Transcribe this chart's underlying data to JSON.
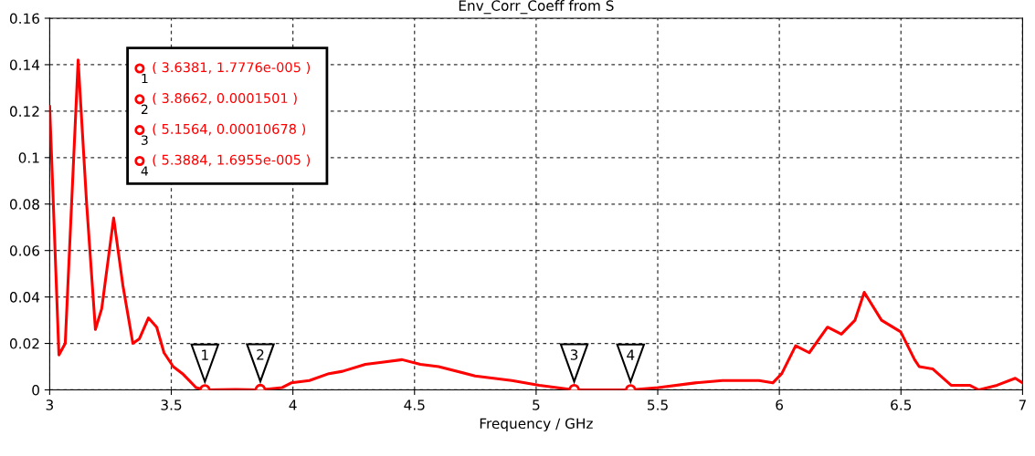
{
  "chart_data": {
    "type": "line",
    "title": "Env_Corr_Coeff from S",
    "xlabel": "Frequency / GHz",
    "x": [
      3.0,
      3.008,
      3.038,
      3.064,
      3.117,
      3.152,
      3.188,
      3.214,
      3.263,
      3.301,
      3.342,
      3.369,
      3.406,
      3.44,
      3.47,
      3.508,
      3.546,
      3.602,
      3.638,
      3.771,
      3.866,
      3.956,
      3.993,
      4.068,
      4.148,
      4.204,
      4.298,
      4.373,
      4.449,
      4.524,
      4.599,
      4.749,
      4.9,
      5.013,
      5.156,
      5.388,
      5.502,
      5.653,
      5.766,
      5.841,
      5.916,
      5.973,
      6.01,
      6.067,
      6.123,
      6.198,
      6.255,
      6.311,
      6.349,
      6.42,
      6.499,
      6.556,
      6.575,
      6.631,
      6.706,
      6.782,
      6.82,
      6.895,
      6.97,
      7.0
    ],
    "series": [
      {
        "color": "#ff0000",
        "values": [
          0.122,
          0.1,
          0.015,
          0.02,
          0.142,
          0.08,
          0.026,
          0.035,
          0.074,
          0.045,
          0.02,
          0.022,
          0.031,
          0.027,
          0.016,
          0.01,
          0.007,
          0.001,
          0.0,
          0.0002,
          0.0,
          0.001,
          0.003,
          0.004,
          0.007,
          0.008,
          0.011,
          0.012,
          0.013,
          0.011,
          0.01,
          0.006,
          0.004,
          0.002,
          0.0,
          0.0,
          0.001,
          0.003,
          0.004,
          0.004,
          0.004,
          0.003,
          0.007,
          0.019,
          0.016,
          0.027,
          0.024,
          0.03,
          0.042,
          0.03,
          0.025,
          0.013,
          0.01,
          0.009,
          0.002,
          0.002,
          0.0,
          0.002,
          0.005,
          0.003
        ]
      }
    ],
    "xlim": [
      3,
      7
    ],
    "xticks": [
      3,
      3.5,
      4,
      4.5,
      5,
      5.5,
      6,
      6.5,
      7
    ],
    "ylim": [
      0,
      0.16
    ],
    "yticks": [
      0,
      0.02,
      0.04,
      0.06,
      0.08,
      0.1,
      0.12,
      0.14,
      0.16
    ],
    "grid": true,
    "line_style": "solid",
    "marker": "none",
    "annotations": [
      {
        "text": "1",
        "x": 3.6381,
        "y": 1.7776e-05
      },
      {
        "text": "2",
        "x": 3.8662,
        "y": 0.0001501
      },
      {
        "text": "3",
        "x": 5.1564,
        "y": 0.00010678
      },
      {
        "text": "4",
        "x": 5.3884,
        "y": 1.6955e-05
      },
      "( 3.6381, 1.7776e-005 )",
      "( 3.8662, 0.0001501 )",
      "( 5.1564, 0.00010678 )",
      "( 5.3884, 1.6955e-005 )"
    ]
  }
}
